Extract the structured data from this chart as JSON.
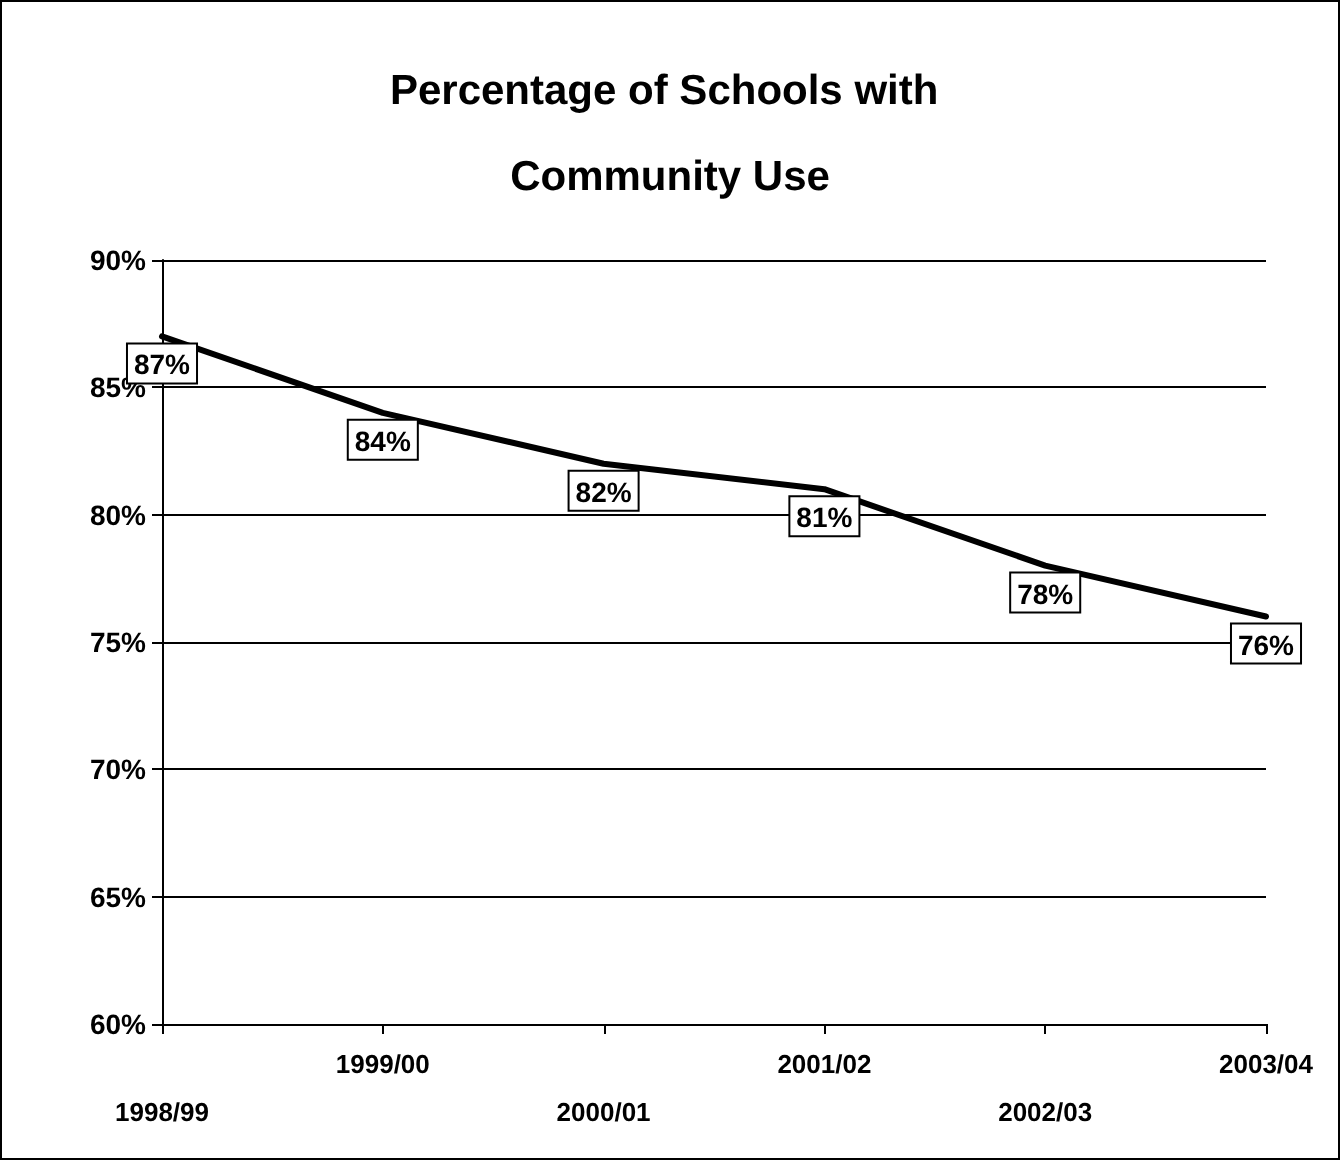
{
  "chart_data": {
    "type": "line",
    "title": "Percentage of Schools with Community Use",
    "categories": [
      "1998/99",
      "1999/00",
      "2000/01",
      "2001/02",
      "2002/03",
      "2003/04"
    ],
    "series": [
      {
        "color": "#000000",
        "values": [
          87,
          84,
          82,
          81,
          78,
          76
        ],
        "value_labels": [
          "87%",
          "84%",
          "82%",
          "81%",
          "78%",
          "76%"
        ]
      }
    ],
    "ylim": [
      60,
      90
    ],
    "yticks": [
      {
        "value": 60,
        "label": "60%"
      },
      {
        "value": 65,
        "label": "65%"
      },
      {
        "value": 70,
        "label": "70%"
      },
      {
        "value": 75,
        "label": "75%"
      },
      {
        "value": 80,
        "label": "80%"
      },
      {
        "value": 85,
        "label": "85%"
      },
      {
        "value": 90,
        "label": "90%"
      }
    ],
    "grid": "y",
    "marker": "none",
    "line_style": "solid"
  }
}
